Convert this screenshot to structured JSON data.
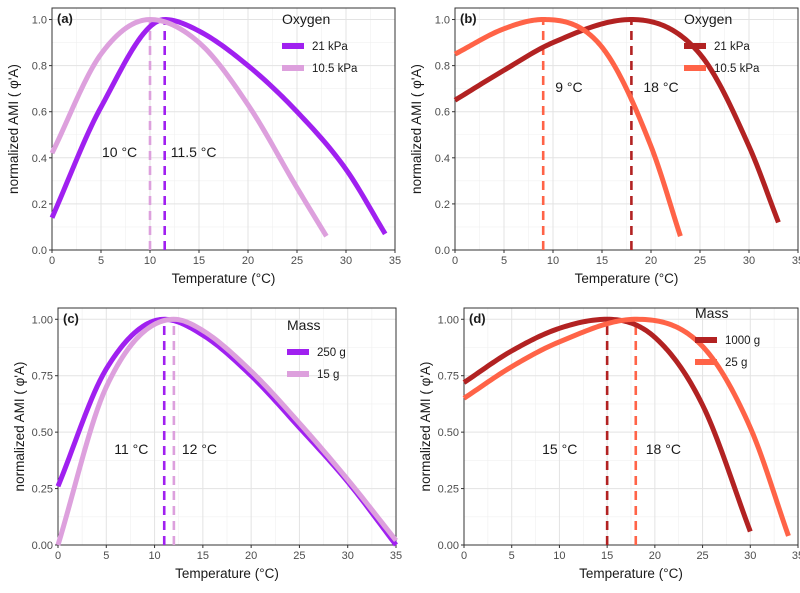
{
  "chart_data": [
    {
      "type": "line",
      "panel_label": "(a)",
      "xlabel": "Temperature (°C)",
      "ylabel": "normalized AMI ( φ'A)",
      "xlim": [
        0,
        35
      ],
      "ylim": [
        0,
        1.05
      ],
      "x_ticks": [
        0,
        5,
        10,
        15,
        20,
        25,
        30,
        35
      ],
      "y_ticks": [
        0.0,
        0.2,
        0.4,
        0.6,
        0.8,
        1.0
      ],
      "y_tick_labels": [
        "0.0",
        "0.2",
        "0.4",
        "0.6",
        "0.8",
        "1.0"
      ],
      "grid": true,
      "legend": {
        "title": "Oxygen",
        "position": "top-right"
      },
      "series": [
        {
          "name": "21 kPa",
          "color": "#a020f0",
          "topt": 11.5,
          "x_start": 0,
          "x_end": 34,
          "x": [
            0,
            5,
            11.5,
            15,
            20,
            25,
            30,
            34
          ],
          "y": [
            0.14,
            0.62,
            1.0,
            0.95,
            0.8,
            0.6,
            0.35,
            0.07
          ]
        },
        {
          "name": "10.5 kPa",
          "color": "#dda0dd",
          "topt": 10,
          "x_start": 0,
          "x_end": 28,
          "x": [
            0,
            5,
            10,
            15,
            20,
            25,
            28
          ],
          "y": [
            0.42,
            0.85,
            1.0,
            0.9,
            0.63,
            0.27,
            0.06
          ]
        }
      ],
      "vlines": [
        {
          "x": 10,
          "color": "#dda0dd",
          "label": "10 °C"
        },
        {
          "x": 11.5,
          "color": "#a020f0",
          "label": "11.5 °C"
        }
      ]
    },
    {
      "type": "line",
      "panel_label": "(b)",
      "xlabel": "Temperature (°C)",
      "ylabel": "normalized AMI ( φ'A)",
      "xlim": [
        0,
        35
      ],
      "ylim": [
        0,
        1.05
      ],
      "x_ticks": [
        0,
        5,
        10,
        15,
        20,
        25,
        30,
        35
      ],
      "y_ticks": [
        0.0,
        0.2,
        0.4,
        0.6,
        0.8,
        1.0
      ],
      "y_tick_labels": [
        "0.0",
        "0.2",
        "0.4",
        "0.6",
        "0.8",
        "1.0"
      ],
      "grid": true,
      "legend": {
        "title": "Oxygen",
        "position": "top-right"
      },
      "series": [
        {
          "name": "21 kPa",
          "color": "#b22222",
          "topt": 18,
          "x_start": 0,
          "x_end": 33,
          "x": [
            0,
            5,
            10,
            18,
            25,
            30,
            33
          ],
          "y": [
            0.65,
            0.78,
            0.9,
            1.0,
            0.85,
            0.45,
            0.12
          ]
        },
        {
          "name": "10.5 kPa",
          "color": "#ff6347",
          "topt": 9,
          "x_start": 0,
          "x_end": 23,
          "x": [
            0,
            5,
            9,
            15,
            20,
            23
          ],
          "y": [
            0.85,
            0.96,
            1.0,
            0.88,
            0.45,
            0.06
          ]
        }
      ],
      "vlines": [
        {
          "x": 9,
          "color": "#ff6347",
          "label": "9 °C"
        },
        {
          "x": 18,
          "color": "#b22222",
          "label": "18 °C"
        }
      ]
    },
    {
      "type": "line",
      "panel_label": "(c)",
      "xlabel": "Temperature (°C)",
      "ylabel": "normalized AMI ( φ'A)",
      "xlim": [
        0,
        35
      ],
      "ylim": [
        0,
        1.05
      ],
      "x_ticks": [
        0,
        5,
        10,
        15,
        20,
        25,
        30,
        35
      ],
      "y_ticks": [
        0.0,
        0.25,
        0.5,
        0.75,
        1.0
      ],
      "y_tick_labels": [
        "0.00",
        "0.25",
        "0.50",
        "0.75",
        "1.00"
      ],
      "grid": true,
      "legend": {
        "title": "Mass",
        "position": "top-right"
      },
      "series": [
        {
          "name": "250 g",
          "color": "#a020f0",
          "topt": 11,
          "x_start": 0,
          "x_end": 35,
          "x": [
            0,
            5,
            11,
            15,
            20,
            25,
            30,
            35
          ],
          "y": [
            0.26,
            0.78,
            1.0,
            0.93,
            0.75,
            0.52,
            0.28,
            0.0
          ]
        },
        {
          "name": "15 g",
          "color": "#dda0dd",
          "topt": 12,
          "x_start": 0,
          "x_end": 35,
          "x": [
            0,
            5,
            12,
            15,
            20,
            25,
            30,
            35
          ],
          "y": [
            0.0,
            0.7,
            1.0,
            0.95,
            0.77,
            0.54,
            0.29,
            0.02
          ]
        }
      ],
      "vlines": [
        {
          "x": 11,
          "color": "#a020f0",
          "label": "11 °C"
        },
        {
          "x": 12,
          "color": "#dda0dd",
          "label": "12 °C"
        }
      ]
    },
    {
      "type": "line",
      "panel_label": "(d)",
      "xlabel": "Temperature (°C)",
      "ylabel": "normalized AMI ( φ'A)",
      "xlim": [
        0,
        35
      ],
      "ylim": [
        0,
        1.05
      ],
      "x_ticks": [
        0,
        5,
        10,
        15,
        20,
        25,
        30,
        35
      ],
      "y_ticks": [
        0.0,
        0.25,
        0.5,
        0.75,
        1.0
      ],
      "y_tick_labels": [
        "0.00",
        "0.25",
        "0.50",
        "0.75",
        "1.00"
      ],
      "grid": true,
      "legend": {
        "title": "Mass",
        "position": "top-right"
      },
      "series": [
        {
          "name": "1000 g",
          "color": "#b22222",
          "topt": 15,
          "x_start": 0,
          "x_end": 30,
          "x": [
            0,
            5,
            10,
            15,
            20,
            25,
            30
          ],
          "y": [
            0.72,
            0.86,
            0.96,
            1.0,
            0.92,
            0.62,
            0.06
          ]
        },
        {
          "name": "25 g",
          "color": "#ff6347",
          "topt": 18,
          "x_start": 0,
          "x_end": 34,
          "x": [
            0,
            5,
            10,
            18,
            25,
            30,
            34
          ],
          "y": [
            0.65,
            0.79,
            0.9,
            1.0,
            0.88,
            0.52,
            0.04
          ]
        }
      ],
      "vlines": [
        {
          "x": 15,
          "color": "#b22222",
          "label": "15 °C"
        },
        {
          "x": 18,
          "color": "#ff6347",
          "label": "18 °C"
        }
      ]
    }
  ]
}
